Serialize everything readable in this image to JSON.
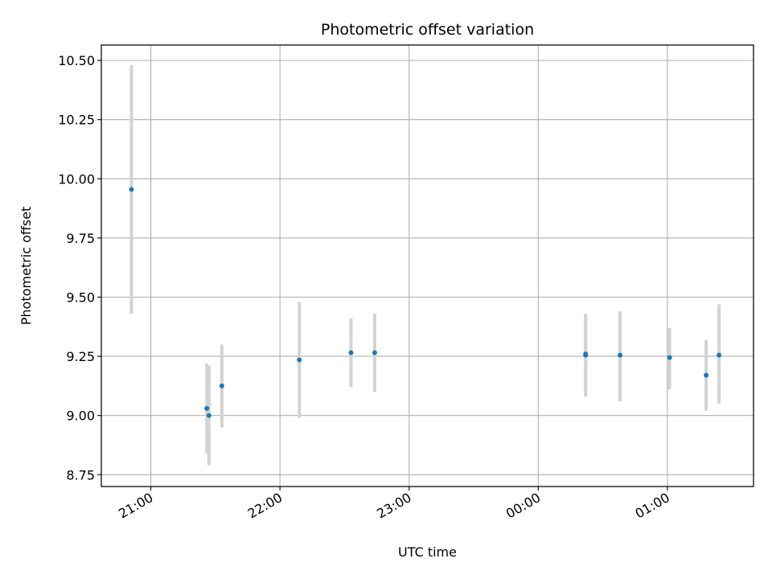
{
  "chart_data": {
    "type": "scatter",
    "title": "Photometric offset variation",
    "xlabel": "UTC time",
    "ylabel": "Photometric offset",
    "grid": true,
    "legend": "none",
    "xlim": [
      "20:37",
      "01:40"
    ],
    "ylim": [
      8.7,
      10.565
    ],
    "xticks": [
      "21:00",
      "22:00",
      "23:00",
      "00:00",
      "01:00"
    ],
    "yticks": [
      "8.75",
      "9.00",
      "9.25",
      "9.50",
      "9.75",
      "10.00",
      "10.25",
      "10.50"
    ],
    "series": [
      {
        "marker_color": "#1f77b4",
        "error_bar_color": "#d3d3d3",
        "points": [
          {
            "x": "20:51",
            "y": 9.955,
            "yerr_low": 9.43,
            "yerr_high": 10.48
          },
          {
            "x": "21:26",
            "y": 9.03,
            "yerr_low": 8.84,
            "yerr_high": 9.22
          },
          {
            "x": "21:27",
            "y": 9.0,
            "yerr_low": 8.79,
            "yerr_high": 9.21
          },
          {
            "x": "21:33",
            "y": 9.125,
            "yerr_low": 8.95,
            "yerr_high": 9.3
          },
          {
            "x": "22:09",
            "y": 9.235,
            "yerr_low": 8.99,
            "yerr_high": 9.48
          },
          {
            "x": "22:33",
            "y": 9.265,
            "yerr_low": 9.12,
            "yerr_high": 9.41
          },
          {
            "x": "22:44",
            "y": 9.265,
            "yerr_low": 9.1,
            "yerr_high": 9.43
          },
          {
            "x": "00:22",
            "y": 9.255,
            "yerr_low": 9.08,
            "yerr_high": 9.43
          },
          {
            "x": "00:22",
            "y": 9.26,
            "yerr_low": 9.09,
            "yerr_high": 9.43
          },
          {
            "x": "00:38",
            "y": 9.255,
            "yerr_low": 9.06,
            "yerr_high": 9.44
          },
          {
            "x": "01:01",
            "y": 9.245,
            "yerr_low": 9.11,
            "yerr_high": 9.37
          },
          {
            "x": "01:18",
            "y": 9.17,
            "yerr_low": 9.02,
            "yerr_high": 9.32
          },
          {
            "x": "01:24",
            "y": 9.255,
            "yerr_low": 9.05,
            "yerr_high": 9.47
          }
        ]
      }
    ]
  }
}
